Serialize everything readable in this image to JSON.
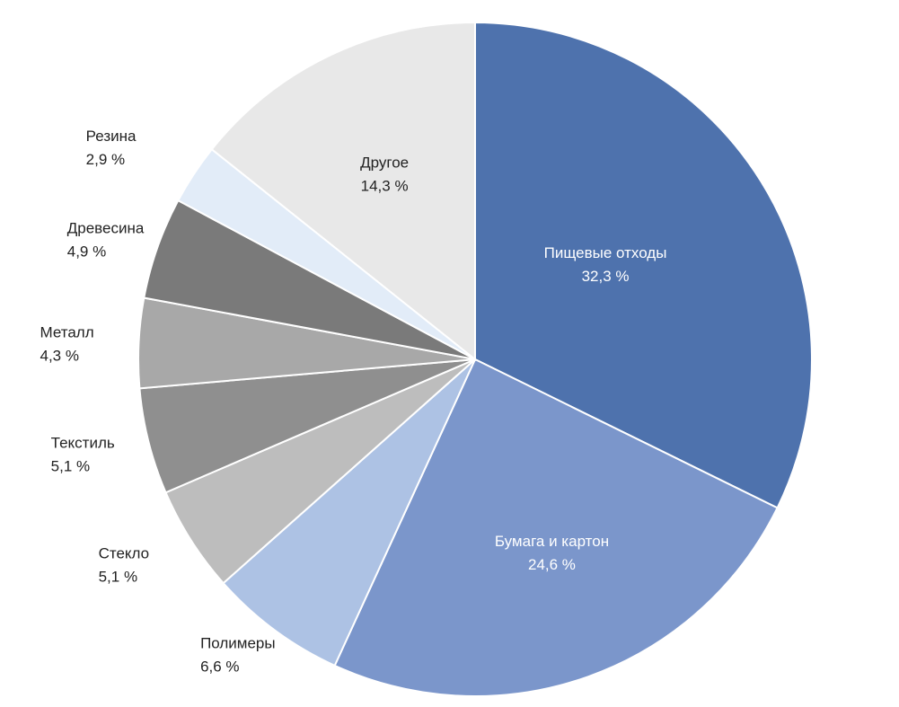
{
  "chart_data": {
    "type": "pie",
    "title": "",
    "start_angle_deg": 0,
    "direction": "clockwise",
    "slices": [
      {
        "label": "Пищевые отходы",
        "value": 32.3,
        "value_label": "32,3 %",
        "color": "#4e72ad"
      },
      {
        "label": "Бумага и картон",
        "value": 24.6,
        "value_label": "24,6 %",
        "color": "#7b96cb"
      },
      {
        "label": "Полимеры",
        "value": 6.6,
        "value_label": "6,6 %",
        "color": "#adc2e4"
      },
      {
        "label": "Стекло",
        "value": 5.1,
        "value_label": "5,1 %",
        "color": "#bdbdbd"
      },
      {
        "label": "Текстиль",
        "value": 5.1,
        "value_label": "5,1 %",
        "color": "#8f8f8f"
      },
      {
        "label": "Металл",
        "value": 4.3,
        "value_label": "4,3 %",
        "color": "#a8a8a8"
      },
      {
        "label": "Древесина",
        "value": 4.9,
        "value_label": "4,9 %",
        "color": "#7a7a7a"
      },
      {
        "label": "Резина",
        "value": 2.9,
        "value_label": "2,9 %",
        "color": "#e2ecf8"
      },
      {
        "label": "Другое",
        "value": 14.3,
        "value_label": "14,3 %",
        "color": "#e8e8e8"
      }
    ]
  }
}
